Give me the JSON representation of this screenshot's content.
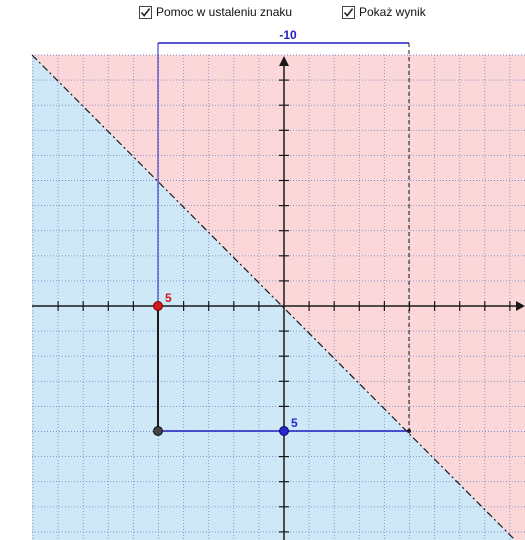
{
  "checkboxes": [
    {
      "label": "Pomoc w ustaleniu znaku",
      "checked": true
    },
    {
      "label": "Pokaż wynik",
      "checked": true
    }
  ],
  "graph": {
    "top_label": "-10",
    "red_point_label": "5",
    "blue_point_label": "5",
    "colors": {
      "pink_region": "#fcd7d9",
      "blue_region": "#cfe8f8",
      "grid": "#7d8fc8",
      "axis": "#1a1a1a",
      "dash_line": "#1a1a1a",
      "red_point": "#d11a1a",
      "blue_point": "#2727cc",
      "grey_point": "#444444",
      "bracket": "#2020c0",
      "black_segment": "#1a1a1a"
    }
  }
}
